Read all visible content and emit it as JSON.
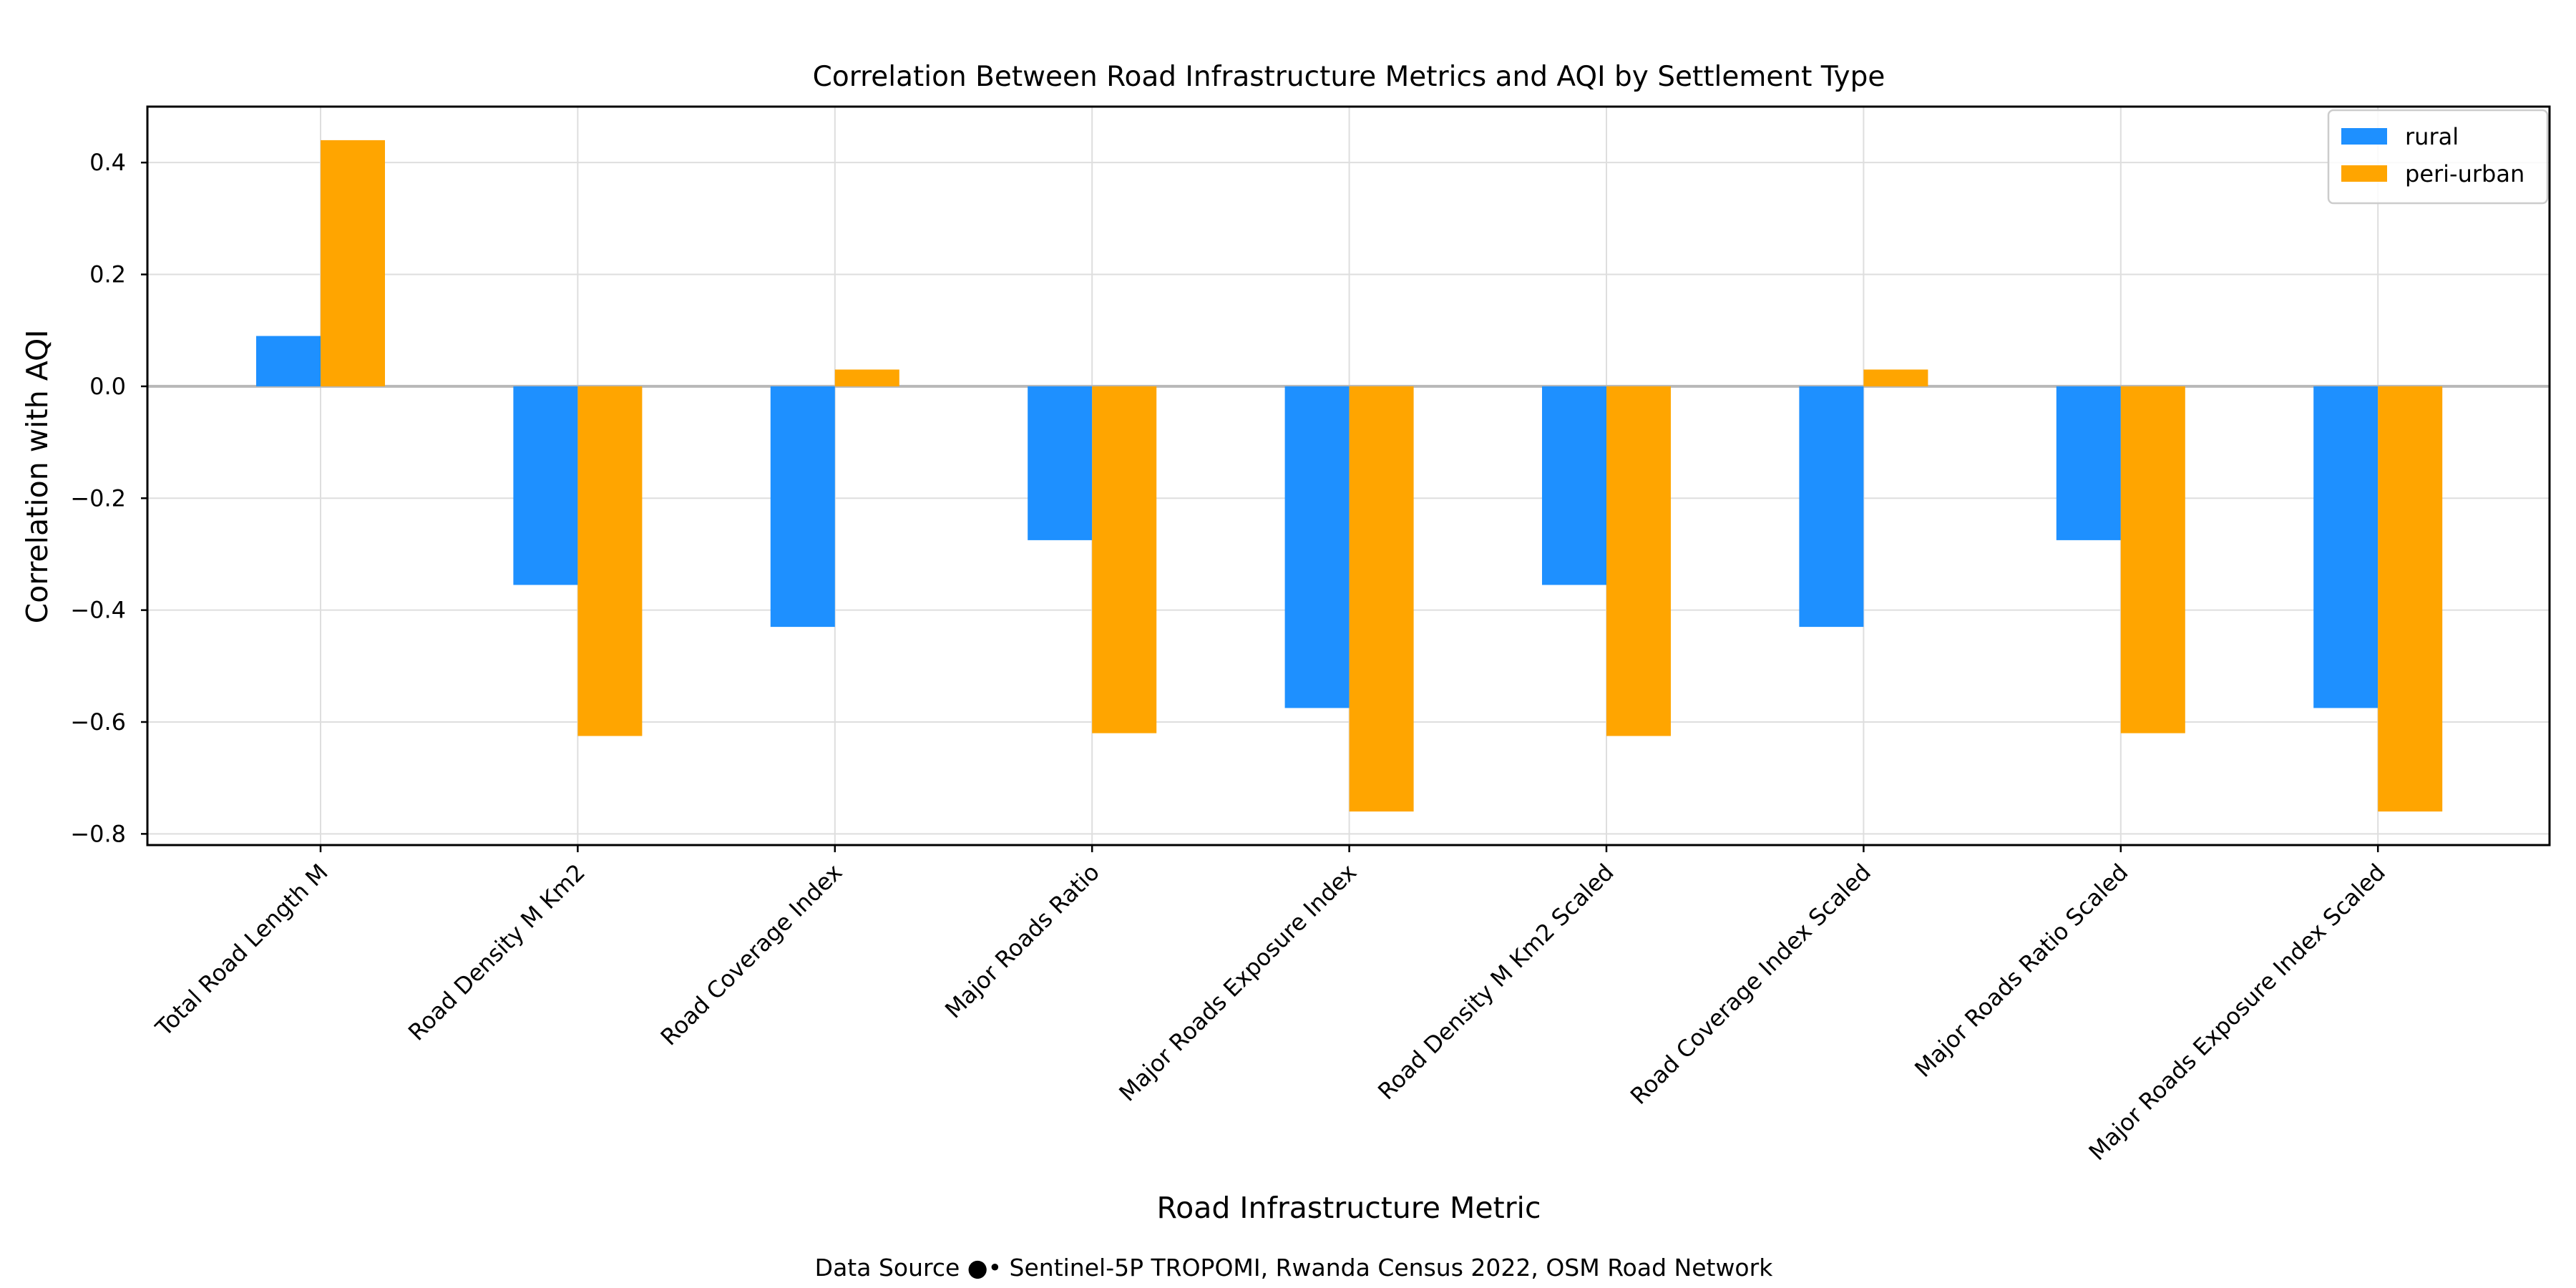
{
  "chart_data": {
    "type": "bar",
    "title": "Correlation Between Road Infrastructure Metrics and AQI by Settlement Type",
    "xlabel": "Road Infrastructure Metric",
    "ylabel": "Correlation with AQI",
    "categories": [
      "Total Road Length M",
      "Road Density M Km2",
      "Road Coverage Index",
      "Major Roads Ratio",
      "Major Roads Exposure Index",
      "Road Density M Km2 Scaled",
      "Road Coverage Index Scaled",
      "Major Roads Ratio Scaled",
      "Major Roads Exposure Index Scaled"
    ],
    "series": [
      {
        "name": "rural",
        "color": "#1e90ff",
        "values": [
          0.09,
          -0.355,
          -0.43,
          -0.275,
          -0.575,
          -0.355,
          -0.43,
          -0.275,
          -0.575
        ]
      },
      {
        "name": "peri-urban",
        "color": "#ffa500",
        "values": [
          0.44,
          -0.625,
          0.03,
          -0.62,
          -0.76,
          -0.625,
          0.03,
          -0.62,
          -0.76
        ]
      }
    ],
    "ylim": [
      -0.82,
      0.5
    ],
    "yticks": [
      0.4,
      0.2,
      0.0,
      -0.2,
      -0.4,
      -0.6,
      -0.8
    ],
    "ytick_labels": [
      "0.4",
      "0.2",
      "0.0",
      "−0.2",
      "−0.4",
      "−0.6",
      "−0.8"
    ],
    "grid": true,
    "zero_line": true,
    "legend_position": "top-right",
    "source_note": "Data Source ●• Sentinel-5P TROPOMI, Rwanda Census 2022, OSM Road Network"
  }
}
